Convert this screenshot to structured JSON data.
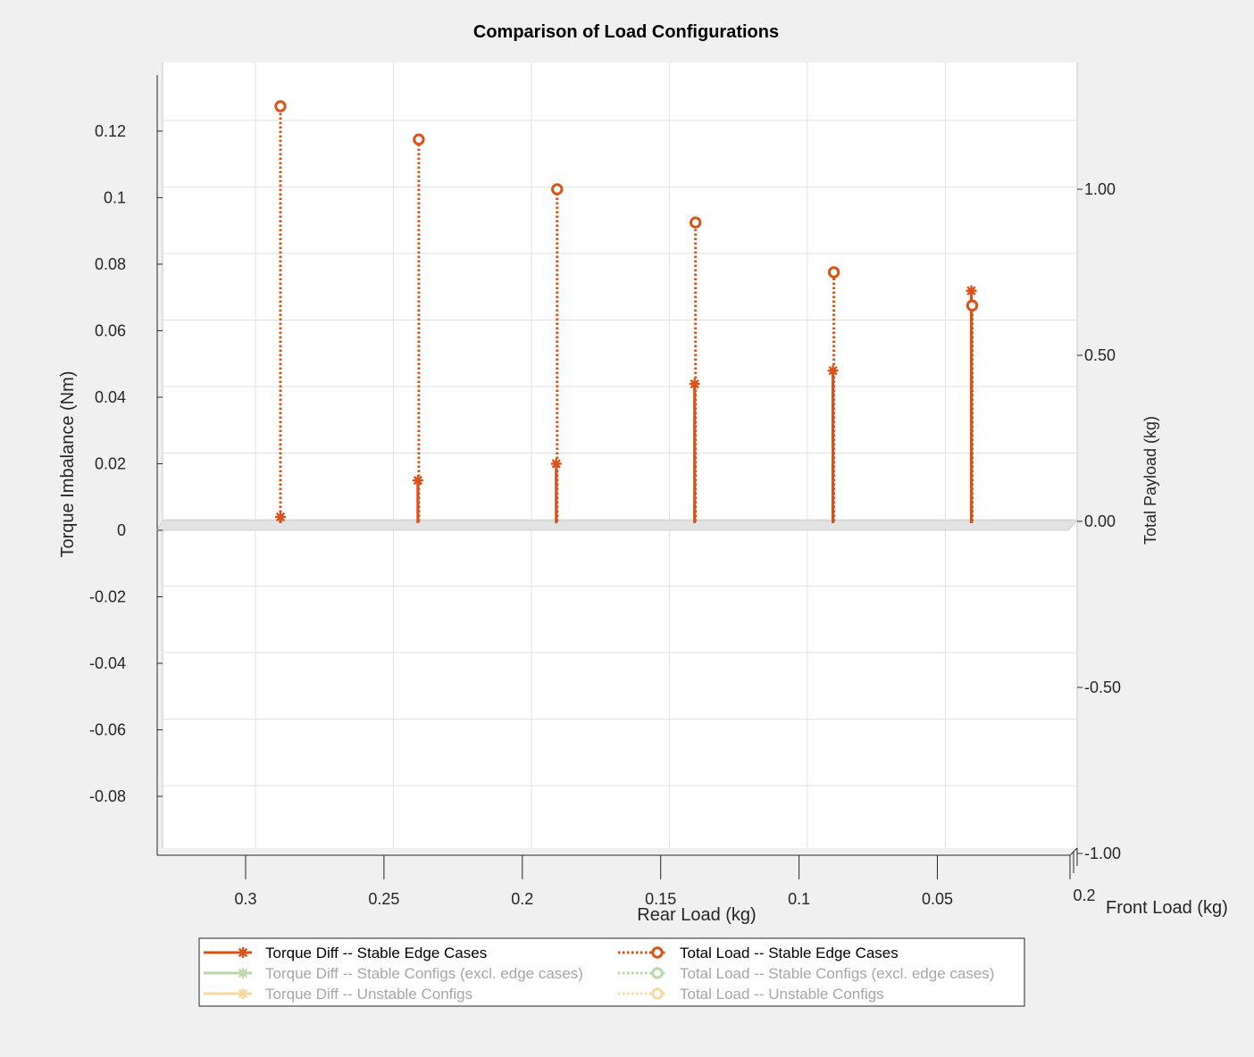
{
  "chart_data": {
    "type": "stem3d",
    "title": "Comparison of Load Configurations",
    "xlabel": "Rear Load (kg)",
    "ylabel_depth": "Front Load (kg)",
    "zlabel_left": "Torque Imbalance (Nm)",
    "zlabel_right": "Total Payload (kg)",
    "x_ticks": [
      "0.3",
      "0.25",
      "0.2",
      "0.15",
      "0.1",
      "0.05"
    ],
    "depth_tick": "0.2",
    "left_ticks": [
      "0.12",
      "0.1",
      "0.08",
      "0.06",
      "0.04",
      "0.02",
      "0",
      "-0.02",
      "-0.04",
      "-0.06",
      "-0.08"
    ],
    "left_tick_values": [
      0.12,
      0.1,
      0.08,
      0.06,
      0.04,
      0.02,
      0,
      -0.02,
      -0.04,
      -0.06,
      -0.08
    ],
    "right_ticks": [
      "1.00",
      "0.50",
      "0.00",
      "-0.50",
      "-1.00"
    ],
    "right_tick_values": [
      1.0,
      0.5,
      0.0,
      -0.5,
      -1.0
    ],
    "left_ylim": [
      -0.098,
      0.13
    ],
    "right_ylim": [
      -1.0,
      1.3
    ],
    "grid": true,
    "legend_position": "bottom",
    "series": [
      {
        "name": "Torque Diff -- Stable Edge Cases",
        "axis": "left",
        "style": "solid-asterisk",
        "color": "#d95319",
        "x": [
          0.3,
          0.25,
          0.2,
          0.15,
          0.1,
          0.05
        ],
        "values": [
          0.004,
          0.015,
          0.02,
          0.044,
          0.048,
          0.072
        ]
      },
      {
        "name": "Total Load -- Stable Edge Cases",
        "axis": "right",
        "style": "dotted-circle",
        "color": "#d95319",
        "x": [
          0.3,
          0.25,
          0.2,
          0.15,
          0.1,
          0.05
        ],
        "values": [
          1.25,
          1.15,
          1.0,
          0.9,
          0.75,
          0.65
        ]
      },
      {
        "name": "Torque Diff -- Stable Configs (excl. edge cases)",
        "axis": "left",
        "style": "solid-asterisk",
        "color": "#b9d9a9",
        "x": [],
        "values": []
      },
      {
        "name": "Total Load -- Stable Configs (excl. edge cases)",
        "axis": "right",
        "style": "dotted-circle",
        "color": "#b9d9a9",
        "x": [],
        "values": []
      },
      {
        "name": "Torque Diff -- Unstable Configs",
        "axis": "left",
        "style": "solid-asterisk",
        "color": "#f6d9a0",
        "x": [],
        "values": []
      },
      {
        "name": "Total Load -- Unstable Configs",
        "axis": "right",
        "style": "dotted-circle",
        "color": "#f6d9a0",
        "x": [],
        "values": []
      }
    ]
  },
  "legend": {
    "items": [
      {
        "label": "Torque Diff -- Stable Edge Cases",
        "color": "#d95319",
        "text_color": "#000000",
        "marker": "asterisk",
        "line": "solid"
      },
      {
        "label": "Total Load -- Stable Edge Cases",
        "color": "#d95319",
        "text_color": "#000000",
        "marker": "circle",
        "line": "dotted"
      },
      {
        "label": "Torque Diff -- Stable Configs (excl. edge cases)",
        "color": "#b9d9a9",
        "text_color": "#a6a6a6",
        "marker": "asterisk",
        "line": "solid"
      },
      {
        "label": "Total Load -- Stable Configs (excl. edge cases)",
        "color": "#b9d9a9",
        "text_color": "#a6a6a6",
        "marker": "circle",
        "line": "dotted"
      },
      {
        "label": "Torque Diff -- Unstable Configs",
        "color": "#f6d9a0",
        "text_color": "#a6a6a6",
        "marker": "asterisk",
        "line": "solid"
      },
      {
        "label": "Total Load -- Unstable Configs",
        "color": "#f6d9a0",
        "text_color": "#a6a6a6",
        "marker": "circle",
        "line": "dotted"
      }
    ]
  }
}
